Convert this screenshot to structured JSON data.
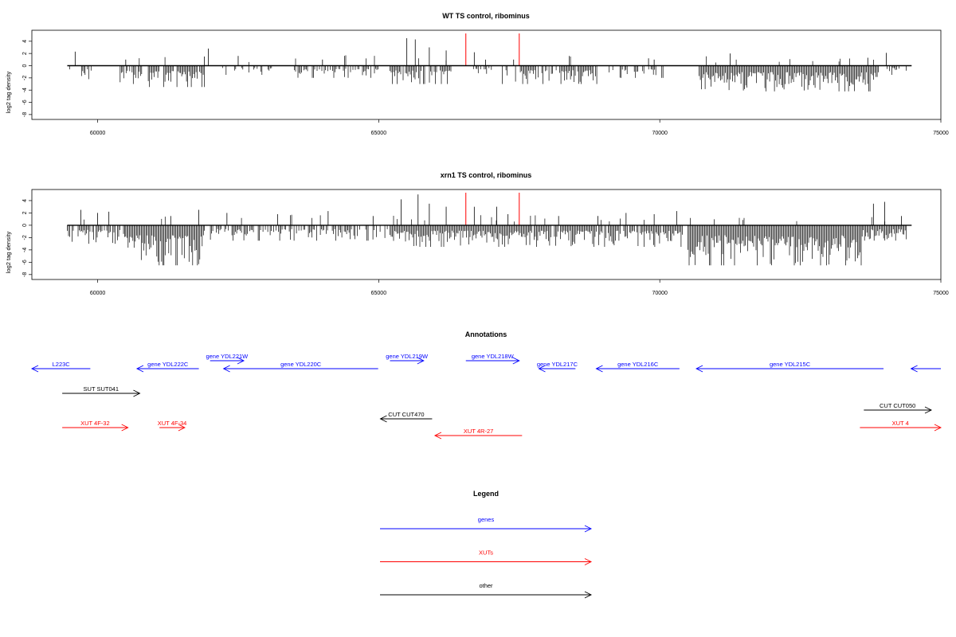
{
  "colors": {
    "axis": "#000000",
    "bars": "#000000",
    "marker": "#ff0000",
    "genes": "#0000ff",
    "xuts": "#ff0000",
    "other": "#000000"
  },
  "chart_data": [
    {
      "type": "bar",
      "title": "WT TS control, ribominus",
      "ylabel": "log2 tag density",
      "xlim": [
        58830,
        75000
      ],
      "ylim": [
        -8.8,
        5.8
      ],
      "x_ticks": [
        60000,
        65000,
        70000,
        75000
      ],
      "x_tick_labels": [
        "60000",
        "65000",
        "70000",
        "75000"
      ],
      "y_ticks": [
        4,
        2,
        0,
        -2,
        -4,
        -6,
        -8
      ],
      "y_tick_labels": [
        "4",
        "2",
        "0",
        "-2",
        "-4",
        "-6",
        "-8"
      ],
      "baseline": {
        "y": 0,
        "x_range": [
          59460,
          74480
        ]
      },
      "marker_lines": [
        66550,
        67500
      ],
      "segments": [
        {
          "x_range": [
            59500,
            59900
          ],
          "density": 0.5,
          "amp_neg": 2.2,
          "pos_peaks": [
            [
              59600,
              2.3
            ]
          ]
        },
        {
          "x_range": [
            60400,
            60800
          ],
          "density": 0.8,
          "amp_neg": 3.0,
          "pos_peaks": [
            [
              60500,
              1.0
            ]
          ]
        },
        {
          "x_range": [
            60900,
            61900
          ],
          "density": 0.9,
          "amp_neg": 3.5,
          "pos_peaks": [
            [
              61970,
              2.8
            ],
            [
              61900,
              1.5
            ]
          ]
        },
        {
          "x_range": [
            62200,
            63100
          ],
          "density": 0.3,
          "amp_neg": 1.5,
          "pos_peaks": [
            [
              62500,
              1.6
            ]
          ]
        },
        {
          "x_range": [
            63500,
            65000
          ],
          "density": 0.6,
          "amp_neg": 2.0,
          "pos_peaks": [
            [
              64000,
              1.0
            ]
          ]
        },
        {
          "x_range": [
            65200,
            66300
          ],
          "density": 0.9,
          "amp_neg": 3.0,
          "pos_peaks": [
            [
              65500,
              4.5
            ],
            [
              65650,
              4.3
            ],
            [
              65900,
              3.0
            ],
            [
              66200,
              2.5
            ]
          ]
        },
        {
          "x_range": [
            66600,
            67100
          ],
          "density": 0.4,
          "amp_neg": 1.5,
          "pos_peaks": [
            [
              66700,
              2.2
            ],
            [
              66900,
              1.0
            ]
          ]
        },
        {
          "x_range": [
            67200,
            68900
          ],
          "density": 0.7,
          "amp_neg": 3.0,
          "pos_peaks": [
            [
              67400,
              1.0
            ]
          ]
        },
        {
          "x_range": [
            69100,
            70100
          ],
          "density": 0.4,
          "amp_neg": 2.0,
          "pos_peaks": [
            [
              69800,
              1.2
            ],
            [
              69900,
              1.0
            ]
          ]
        },
        {
          "x_range": [
            70700,
            73900
          ],
          "density": 1.0,
          "amp_neg": 4.2,
          "pos_peaks": [
            [
              71250,
              2.0
            ],
            [
              73700,
              1.3
            ],
            [
              74030,
              2.1
            ]
          ]
        },
        {
          "x_range": [
            74000,
            74400
          ],
          "density": 0.5,
          "amp_neg": 1.5,
          "pos_peaks": []
        }
      ]
    },
    {
      "type": "bar",
      "title": "xrn1 TS control, ribominus",
      "ylabel": "log2 tag density",
      "xlim": [
        58830,
        75000
      ],
      "ylim": [
        -8.8,
        5.8
      ],
      "x_ticks": [
        60000,
        65000,
        70000,
        75000
      ],
      "x_tick_labels": [
        "60000",
        "65000",
        "70000",
        "75000"
      ],
      "y_ticks": [
        4,
        2,
        0,
        -2,
        -4,
        -6,
        -8
      ],
      "y_tick_labels": [
        "4",
        "2",
        "0",
        "-2",
        "-4",
        "-6",
        "-8"
      ],
      "baseline": {
        "y": 0,
        "x_range": [
          59460,
          74480
        ]
      },
      "marker_lines": [
        66550,
        67500
      ],
      "segments": [
        {
          "x_range": [
            59460,
            60500
          ],
          "density": 0.8,
          "amp_neg": 3.0,
          "pos_peaks": [
            [
              59700,
              2.5
            ],
            [
              60000,
              2.0
            ],
            [
              60200,
              2.2
            ]
          ]
        },
        {
          "x_range": [
            60500,
            61900
          ],
          "density": 1.0,
          "amp_neg": 6.5,
          "pos_peaks": [
            [
              61800,
              2.5
            ],
            [
              61300,
              1.5
            ]
          ]
        },
        {
          "x_range": [
            61900,
            65200
          ],
          "density": 0.6,
          "amp_neg": 2.5,
          "pos_peaks": [
            [
              62300,
              2.0
            ],
            [
              63200,
              1.8
            ],
            [
              64100,
              2.3
            ],
            [
              64900,
              1.5
            ]
          ]
        },
        {
          "x_range": [
            65200,
            67700
          ],
          "density": 1.0,
          "amp_neg": 3.5,
          "pos_peaks": [
            [
              65400,
              4.2
            ],
            [
              65700,
              5.0
            ],
            [
              65900,
              3.5
            ],
            [
              66200,
              3.0
            ],
            [
              66700,
              3.0
            ],
            [
              67100,
              3.0
            ],
            [
              67300,
              1.8
            ]
          ]
        },
        {
          "x_range": [
            67700,
            70400
          ],
          "density": 0.9,
          "amp_neg": 3.5,
          "pos_peaks": [
            [
              68200,
              1.5
            ],
            [
              68900,
              1.5
            ],
            [
              69400,
              2.0
            ],
            [
              69900,
              1.8
            ],
            [
              70300,
              2.3
            ]
          ]
        },
        {
          "x_range": [
            70500,
            73600
          ],
          "density": 1.0,
          "amp_neg": 6.5,
          "pos_peaks": []
        },
        {
          "x_range": [
            73600,
            74400
          ],
          "density": 1.0,
          "amp_neg": 2.5,
          "pos_peaks": [
            [
              73800,
              3.5
            ],
            [
              74000,
              3.8
            ],
            [
              74300,
              1.5
            ]
          ]
        }
      ]
    }
  ],
  "annotations": {
    "title": "Annotations",
    "features": [
      {
        "label": "L223C",
        "kind": "genes",
        "x_range": [
          58830,
          59870
        ],
        "lane": "genes_lower",
        "strand": "-"
      },
      {
        "label": "gene YDL222C",
        "kind": "genes",
        "x_range": [
          60700,
          61800
        ],
        "lane": "genes_lower",
        "strand": "-"
      },
      {
        "label": "gene YDL221W",
        "kind": "genes",
        "x_range": [
          62000,
          62600
        ],
        "lane": "genes_upper",
        "strand": "+"
      },
      {
        "label": "gene YDL220C",
        "kind": "genes",
        "x_range": [
          62240,
          64990
        ],
        "lane": "genes_lower",
        "strand": "-"
      },
      {
        "label": "gene YDL219W",
        "kind": "genes",
        "x_range": [
          65200,
          65800
        ],
        "lane": "genes_upper",
        "strand": "+"
      },
      {
        "label": "gene YDL218W",
        "kind": "genes",
        "x_range": [
          66550,
          67500
        ],
        "lane": "genes_upper",
        "strand": "+"
      },
      {
        "label": "gene YDL217C",
        "kind": "genes",
        "x_range": [
          67850,
          68500
        ],
        "lane": "genes_lower",
        "strand": "-"
      },
      {
        "label": "gene YDL216C",
        "kind": "genes",
        "x_range": [
          68870,
          70350
        ],
        "lane": "genes_lower",
        "strand": "-"
      },
      {
        "label": "gene YDL215C",
        "kind": "genes",
        "x_range": [
          70650,
          73980
        ],
        "lane": "genes_lower",
        "strand": "-"
      },
      {
        "label": "",
        "kind": "genes",
        "x_range": [
          74470,
          75000
        ],
        "lane": "genes_lower",
        "strand": "-"
      },
      {
        "label": "SUT SUT041",
        "kind": "other",
        "x_range": [
          59370,
          60750
        ],
        "lane": "sut",
        "strand": "+"
      },
      {
        "label": "XUT 4F-32",
        "kind": "xuts",
        "x_range": [
          59370,
          60540
        ],
        "lane": "xut_upper",
        "strand": "+"
      },
      {
        "label": "XUT 4F-34",
        "kind": "xuts",
        "x_range": [
          61100,
          61550
        ],
        "lane": "xut_upper",
        "strand": "+"
      },
      {
        "label": "CUT CUT470",
        "kind": "other",
        "x_range": [
          65030,
          65950
        ],
        "lane": "cut",
        "strand": "-"
      },
      {
        "label": "XUT 4R-27",
        "kind": "xuts",
        "x_range": [
          66000,
          67550
        ],
        "lane": "xut_lower",
        "strand": "-"
      },
      {
        "label": "CUT CUT050",
        "kind": "other",
        "x_range": [
          73630,
          74830
        ],
        "lane": "cut_right",
        "strand": "+"
      },
      {
        "label": "XUT 4",
        "kind": "xuts",
        "x_range": [
          73560,
          75000
        ],
        "lane": "xut_upper",
        "strand": "+"
      }
    ]
  },
  "legend": {
    "title": "Legend",
    "items": [
      {
        "label": "genes",
        "kind": "genes"
      },
      {
        "label": "XUTs",
        "kind": "xuts"
      },
      {
        "label": "other",
        "kind": "other"
      }
    ]
  }
}
